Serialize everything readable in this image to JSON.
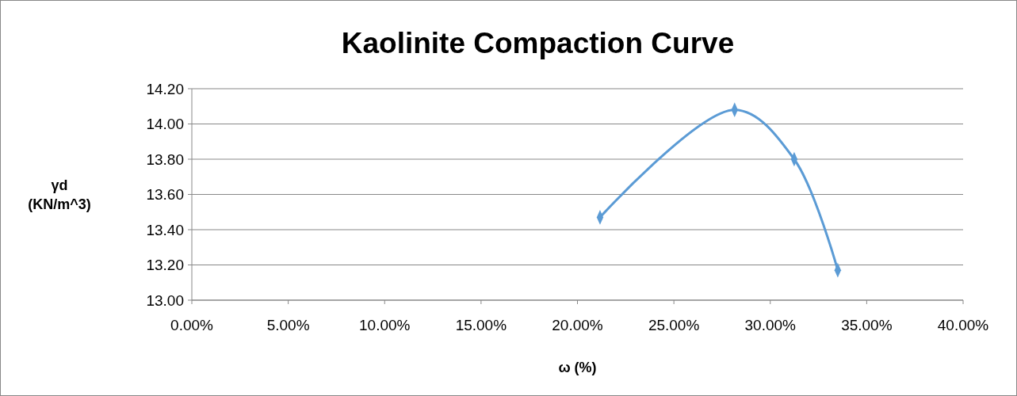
{
  "chart_data": {
    "type": "line",
    "title": "Kaolinite Compaction Curve",
    "xlabel": "ω (%)",
    "ylabel": "γd (KN/m^3)",
    "x": [
      21.17,
      28.15,
      31.24,
      33.5
    ],
    "series": [
      {
        "color": "#5b9bd5",
        "values": [
          13.47,
          14.08,
          13.8,
          13.17
        ]
      }
    ],
    "xlim": [
      0,
      40
    ],
    "xticks": [
      {
        "value": 0,
        "label": "0.00%"
      },
      {
        "value": 5,
        "label": "5.00%"
      },
      {
        "value": 10,
        "label": "10.00%"
      },
      {
        "value": 15,
        "label": "15.00%"
      },
      {
        "value": 20,
        "label": "20.00%"
      },
      {
        "value": 25,
        "label": "25.00%"
      },
      {
        "value": 30,
        "label": "30.00%"
      },
      {
        "value": 35,
        "label": "35.00%"
      },
      {
        "value": 40,
        "label": "40.00%"
      }
    ],
    "ylim": [
      13,
      14.2
    ],
    "yticks": [
      {
        "value": 13,
        "label": "13.00"
      },
      {
        "value": 13.2,
        "label": "13.20"
      },
      {
        "value": 13.4,
        "label": "13.40"
      },
      {
        "value": 13.6,
        "label": "13.60"
      },
      {
        "value": 13.8,
        "label": "13.80"
      },
      {
        "value": 14,
        "label": "14.00"
      },
      {
        "value": 14.2,
        "label": "14.20"
      }
    ],
    "grid": "y",
    "marker": "diamond",
    "line_style": "solid"
  }
}
